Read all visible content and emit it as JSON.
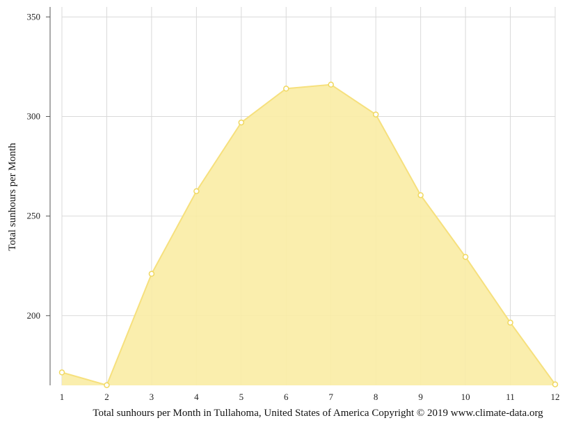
{
  "chart_data": {
    "type": "area",
    "title": "Total sunhours per Month in Tullahoma, United States of America Copyright © 2019 www.climate-data.org",
    "xlabel": "",
    "ylabel": "Total sunhours per Month",
    "x": [
      1,
      2,
      3,
      4,
      5,
      6,
      7,
      8,
      9,
      10,
      11,
      12
    ],
    "series": [
      {
        "name": "",
        "values": [
          171.5,
          165.1,
          221.0,
          262.5,
          297.0,
          314.0,
          316.0,
          301.0,
          260.5,
          229.5,
          196.5,
          165.5
        ]
      }
    ],
    "ylim": [
      165,
      355
    ],
    "yticks": [
      200,
      250,
      300,
      350
    ],
    "grid": true,
    "legend": "none",
    "colors": {
      "fill": "#f9eca4",
      "line": "#f6e07d",
      "marker_fill": "#ffffff",
      "marker_stroke": "#f0d860",
      "grid": "#d9d9d9",
      "axis": "#555555"
    }
  }
}
